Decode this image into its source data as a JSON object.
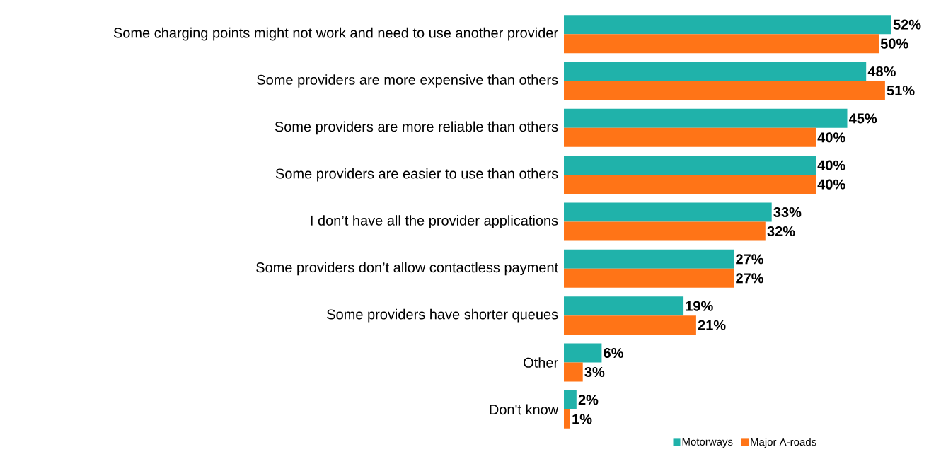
{
  "chart_data": {
    "type": "bar",
    "orientation": "horizontal",
    "categories": [
      "Some charging points might not work and need to use another provider",
      "Some providers are more expensive than others",
      "Some providers are more reliable than others",
      "Some providers are easier to use than others",
      "I don’t have all the provider applications",
      "Some providers don’t allow contactless payment",
      "Some providers have shorter queues",
      "Other",
      "Don't know"
    ],
    "series": [
      {
        "name": "Motorways",
        "color": "#20b2aa",
        "values": [
          52,
          48,
          45,
          40,
          33,
          27,
          19,
          6,
          2
        ],
        "value_labels": [
          "52%",
          "48%",
          "45%",
          "40%",
          "33%",
          "27%",
          "19%",
          "6%",
          "2%"
        ]
      },
      {
        "name": "Major A-roads",
        "color": "#ff7417",
        "values": [
          50,
          51,
          40,
          40,
          32,
          27,
          21,
          3,
          1
        ],
        "value_labels": [
          "50%",
          "51%",
          "40%",
          "40%",
          "32%",
          "27%",
          "21%",
          "3%",
          "1%"
        ]
      }
    ],
    "legend": "bottom"
  }
}
